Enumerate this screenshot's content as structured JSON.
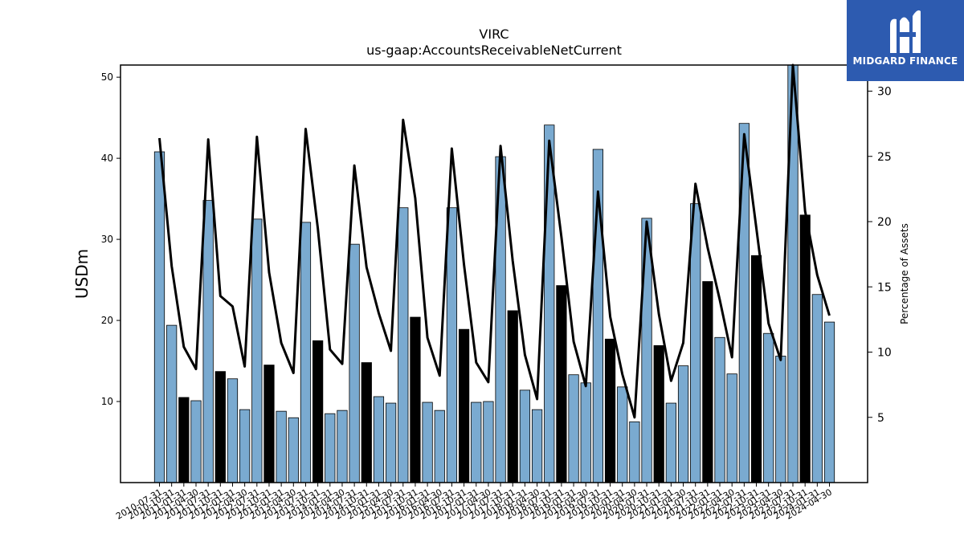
{
  "chart_data": {
    "type": "bar",
    "title": "VIRC",
    "subtitle": "us-gaap:AccountsReceivableNetCurrent",
    "ylabel": "USDm",
    "y2label": "Percentage of Assets",
    "ylim": [
      0,
      51.5
    ],
    "y2lim": [
      0,
      32
    ],
    "yticks": [
      10,
      20,
      30,
      40,
      50
    ],
    "y2ticks": [
      5,
      10,
      15,
      20,
      25,
      30
    ],
    "categories": [
      "2010-07-31",
      "2010-10-31",
      "2011-01-31",
      "2011-04-30",
      "2011-07-31",
      "2011-10-31",
      "2012-01-31",
      "2012-04-30",
      "2012-07-31",
      "2012-10-31",
      "2013-01-31",
      "2013-04-30",
      "2013-07-31",
      "2013-10-31",
      "2014-01-31",
      "2014-04-30",
      "2014-07-31",
      "2014-10-31",
      "2015-01-31",
      "2015-04-30",
      "2015-07-31",
      "2015-10-31",
      "2016-01-31",
      "2016-04-30",
      "2016-07-31",
      "2016-10-31",
      "2017-01-31",
      "2017-04-30",
      "2017-07-31",
      "2017-10-31",
      "2018-01-31",
      "2018-04-30",
      "2018-07-31",
      "2018-10-31",
      "2019-01-31",
      "2019-04-30",
      "2019-07-31",
      "2019-10-31",
      "2020-01-31",
      "2020-04-30",
      "2020-07-31",
      "2020-10-31",
      "2021-01-31",
      "2021-04-30",
      "2021-07-31",
      "2021-10-31",
      "2022-01-31",
      "2022-04-30",
      "2022-07-31",
      "2022-10-31",
      "2023-01-31",
      "2023-04-30",
      "2023-07-31",
      "2023-10-31",
      "2024-01-31",
      "2024-04-30"
    ],
    "series": [
      {
        "values": [
          40.8,
          19.4,
          10.5,
          10.1,
          34.8,
          13.7,
          12.8,
          9.0,
          32.5,
          14.5,
          8.8,
          8.0,
          32.1,
          17.5,
          8.5,
          8.9,
          29.4,
          14.8,
          10.6,
          9.8,
          33.9,
          20.4,
          9.9,
          8.9,
          33.9,
          18.9,
          9.9,
          10.0,
          40.2,
          21.2,
          11.4,
          9.0,
          44.1,
          24.3,
          13.3,
          12.3,
          41.1,
          17.7,
          11.8,
          7.5,
          32.6,
          16.9,
          9.8,
          14.4,
          34.4,
          24.8,
          17.9,
          13.4,
          44.3,
          28.0,
          18.4,
          15.6,
          51.5,
          33.0,
          23.2,
          19.8
        ],
        "highlight_index": [
          2,
          5,
          9,
          13,
          17,
          21,
          25,
          29,
          33,
          37,
          41,
          45,
          49,
          53
        ]
      },
      {
        "values": [
          26.4,
          16.6,
          10.4,
          8.7,
          26.3,
          14.3,
          13.5,
          8.9,
          26.5,
          16.1,
          10.7,
          8.4,
          27.1,
          19.5,
          10.2,
          9.1,
          24.3,
          16.5,
          13.0,
          10.1,
          27.8,
          21.8,
          11.1,
          8.2,
          25.6,
          16.7,
          9.2,
          7.7,
          25.8,
          17.0,
          9.8,
          6.4,
          26.2,
          18.8,
          10.8,
          7.4,
          22.3,
          12.7,
          8.3,
          5.0,
          20.0,
          12.9,
          7.8,
          10.7,
          22.9,
          18.0,
          14.0,
          9.6,
          26.7,
          19.5,
          12.2,
          9.4,
          32.0,
          20.8,
          15.9,
          12.8
        ]
      }
    ],
    "colors": {
      "bar": "#7aaad0",
      "highlight": "#000000",
      "line": "#000000"
    }
  },
  "logo": {
    "text": "MIDGARD FINANCE"
  }
}
